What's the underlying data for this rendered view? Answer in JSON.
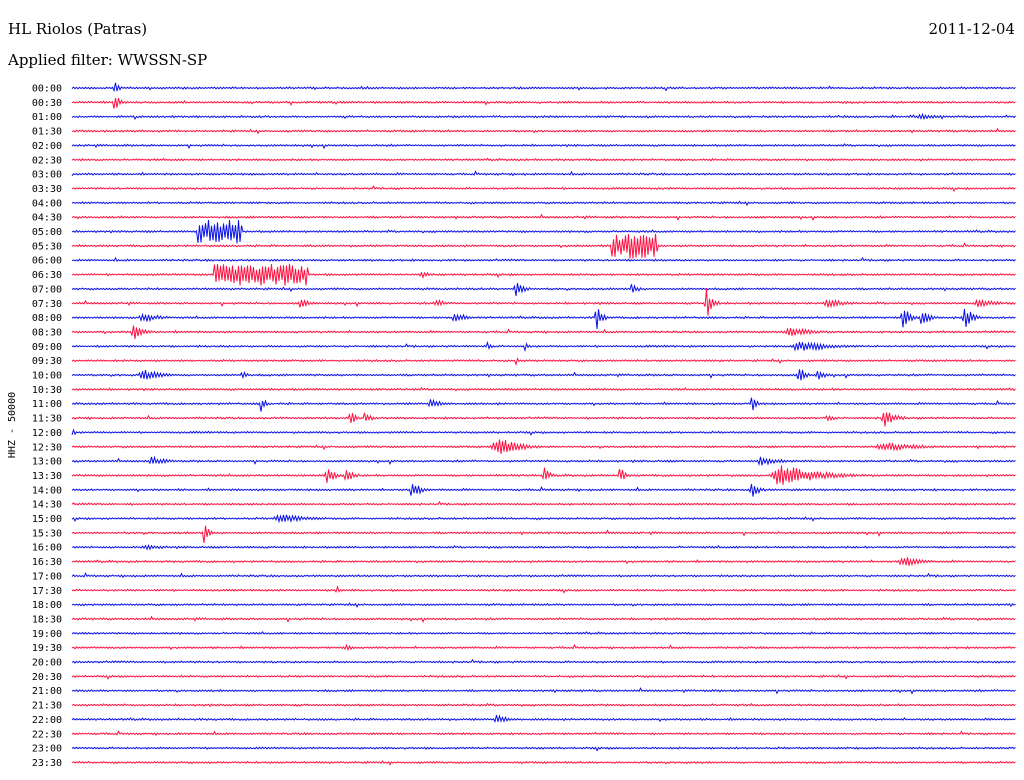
{
  "header": {
    "station": "HL Riolos (Patras)",
    "date": "2011-12-04",
    "filter_label": "Applied filter: WWSSN-SP"
  },
  "colors": {
    "odd_trace": "#0a10e8",
    "even_trace": "#ff1040",
    "text": "#000000",
    "background": "#ffffff"
  },
  "chart_data": {
    "type": "helicorder",
    "channel_label": "HHZ - 50000",
    "grid": false,
    "trace_minutes": 30,
    "row_labels": [
      "00:00",
      "00:30",
      "01:00",
      "01:30",
      "02:00",
      "02:30",
      "03:00",
      "03:30",
      "04:00",
      "04:30",
      "05:00",
      "05:30",
      "06:00",
      "06:30",
      "07:00",
      "07:30",
      "08:00",
      "08:30",
      "09:00",
      "09:30",
      "10:00",
      "10:30",
      "11:00",
      "11:30",
      "12:00",
      "12:30",
      "13:00",
      "13:30",
      "14:00",
      "14:30",
      "15:00",
      "15:30",
      "16:00",
      "16:30",
      "17:00",
      "17:30",
      "18:00",
      "18:30",
      "19:00",
      "19:30",
      "20:00",
      "20:30",
      "21:00",
      "21:30",
      "22:00",
      "22:30",
      "23:00",
      "23:30"
    ],
    "events": [
      {
        "row": 0,
        "t": 0.045,
        "amp": 11,
        "dur": 0.004
      },
      {
        "row": 1,
        "t": 0.045,
        "amp": 11,
        "dur": 0.006
      },
      {
        "row": 2,
        "t": 0.9,
        "amp": 4,
        "dur": 0.02
      },
      {
        "row": 10,
        "t": 0.156,
        "amp": 12,
        "dur": 0.024,
        "block": true
      },
      {
        "row": 11,
        "t": 0.596,
        "amp": 13,
        "dur": 0.024,
        "block": true
      },
      {
        "row": 13,
        "t": 0.2,
        "amp": 11,
        "dur": 0.05,
        "block": true
      },
      {
        "row": 13,
        "t": 0.37,
        "amp": 4,
        "dur": 0.01
      },
      {
        "row": 14,
        "t": 0.47,
        "amp": 9,
        "dur": 0.01
      },
      {
        "row": 14,
        "t": 0.593,
        "amp": 8,
        "dur": 0.006
      },
      {
        "row": 15,
        "t": 0.242,
        "amp": 5,
        "dur": 0.01
      },
      {
        "row": 15,
        "t": 0.385,
        "amp": 4,
        "dur": 0.015
      },
      {
        "row": 15,
        "t": 0.672,
        "amp": 20,
        "dur": 0.006
      },
      {
        "row": 15,
        "t": 0.8,
        "amp": 5,
        "dur": 0.02
      },
      {
        "row": 15,
        "t": 0.96,
        "amp": 5,
        "dur": 0.02
      },
      {
        "row": 16,
        "t": 0.075,
        "amp": 5,
        "dur": 0.02
      },
      {
        "row": 16,
        "t": 0.405,
        "amp": 8,
        "dur": 0.01
      },
      {
        "row": 16,
        "t": 0.555,
        "amp": 15,
        "dur": 0.006
      },
      {
        "row": 16,
        "t": 0.88,
        "amp": 13,
        "dur": 0.008
      },
      {
        "row": 16,
        "t": 0.9,
        "amp": 10,
        "dur": 0.008
      },
      {
        "row": 16,
        "t": 0.945,
        "amp": 15,
        "dur": 0.008
      },
      {
        "row": 17,
        "t": 0.065,
        "amp": 12,
        "dur": 0.008
      },
      {
        "row": 17,
        "t": 0.76,
        "amp": 5,
        "dur": 0.03
      },
      {
        "row": 18,
        "t": 0.44,
        "amp": 5,
        "dur": 0.004
      },
      {
        "row": 18,
        "t": 0.48,
        "amp": 5,
        "dur": 0.004
      },
      {
        "row": 18,
        "t": 0.77,
        "amp": 6,
        "dur": 0.035
      },
      {
        "row": 19,
        "t": 0.47,
        "amp": 5,
        "dur": 0.004
      },
      {
        "row": 20,
        "t": 0.075,
        "amp": 6,
        "dur": 0.02
      },
      {
        "row": 20,
        "t": 0.18,
        "amp": 6,
        "dur": 0.005
      },
      {
        "row": 20,
        "t": 0.77,
        "amp": 11,
        "dur": 0.006
      },
      {
        "row": 20,
        "t": 0.79,
        "amp": 6,
        "dur": 0.008
      },
      {
        "row": 22,
        "t": 0.2,
        "amp": 11,
        "dur": 0.004
      },
      {
        "row": 22,
        "t": 0.38,
        "amp": 6,
        "dur": 0.01
      },
      {
        "row": 22,
        "t": 0.72,
        "amp": 9,
        "dur": 0.005
      },
      {
        "row": 23,
        "t": 0.295,
        "amp": 9,
        "dur": 0.006
      },
      {
        "row": 23,
        "t": 0.31,
        "amp": 8,
        "dur": 0.006
      },
      {
        "row": 23,
        "t": 0.8,
        "amp": 6,
        "dur": 0.006
      },
      {
        "row": 23,
        "t": 0.86,
        "amp": 10,
        "dur": 0.012
      },
      {
        "row": 24,
        "t": 0.0,
        "amp": 5,
        "dur": 0.004
      },
      {
        "row": 25,
        "t": 0.45,
        "amp": 10,
        "dur": 0.025
      },
      {
        "row": 25,
        "t": 0.86,
        "amp": 5,
        "dur": 0.04
      },
      {
        "row": 26,
        "t": 0.085,
        "amp": 5,
        "dur": 0.015
      },
      {
        "row": 26,
        "t": 0.73,
        "amp": 5,
        "dur": 0.02
      },
      {
        "row": 27,
        "t": 0.27,
        "amp": 10,
        "dur": 0.008
      },
      {
        "row": 27,
        "t": 0.29,
        "amp": 9,
        "dur": 0.008
      },
      {
        "row": 27,
        "t": 0.5,
        "amp": 9,
        "dur": 0.006
      },
      {
        "row": 27,
        "t": 0.58,
        "amp": 11,
        "dur": 0.005
      },
      {
        "row": 27,
        "t": 0.75,
        "amp": 12,
        "dur": 0.04
      },
      {
        "row": 28,
        "t": 0.36,
        "amp": 11,
        "dur": 0.008
      },
      {
        "row": 28,
        "t": 0.72,
        "amp": 9,
        "dur": 0.008
      },
      {
        "row": 30,
        "t": 0.22,
        "amp": 5,
        "dur": 0.03
      },
      {
        "row": 31,
        "t": 0.14,
        "amp": 14,
        "dur": 0.005
      },
      {
        "row": 32,
        "t": 0.08,
        "amp": 3,
        "dur": 0.02
      },
      {
        "row": 33,
        "t": 0.88,
        "amp": 6,
        "dur": 0.02
      },
      {
        "row": 35,
        "t": 0.28,
        "amp": 5,
        "dur": 0.004
      },
      {
        "row": 39,
        "t": 0.29,
        "amp": 5,
        "dur": 0.006
      },
      {
        "row": 44,
        "t": 0.45,
        "amp": 6,
        "dur": 0.01
      }
    ]
  }
}
